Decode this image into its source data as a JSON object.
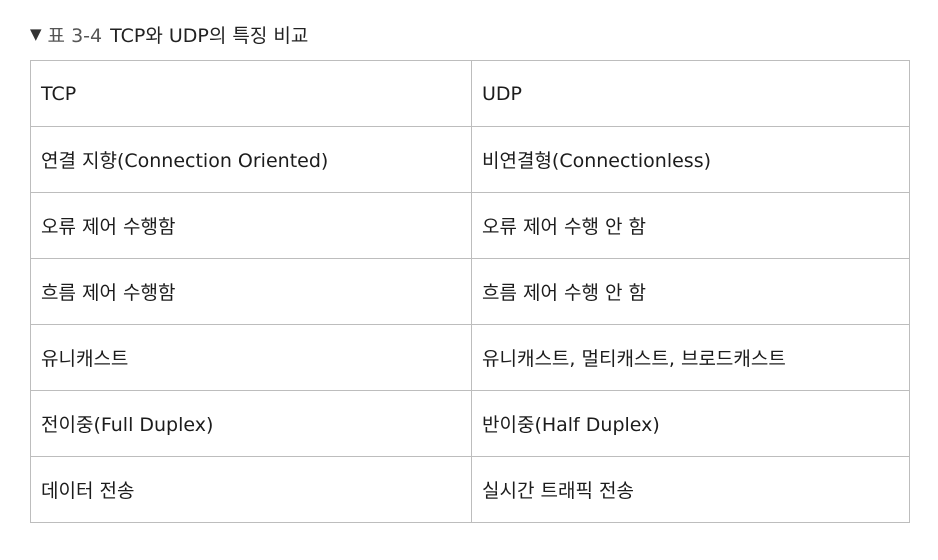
{
  "caption": {
    "marker": "▼",
    "number": "표 3-4",
    "title": "TCP와 UDP의 특징 비교"
  },
  "table": {
    "rows": [
      [
        "TCP",
        "UDP"
      ],
      [
        "연결 지향(Connection Oriented)",
        "비연결형(Connectionless)"
      ],
      [
        "오류 제어 수행함",
        "오류 제어 수행 안 함"
      ],
      [
        "흐름 제어 수행함",
        "흐름 제어 수행 안 함"
      ],
      [
        "유니캐스트",
        "유니캐스트, 멀티캐스트, 브로드캐스트"
      ],
      [
        "전이중(Full Duplex)",
        "반이중(Half Duplex)"
      ],
      [
        "데이터 전송",
        "실시간 트래픽 전송"
      ]
    ]
  }
}
